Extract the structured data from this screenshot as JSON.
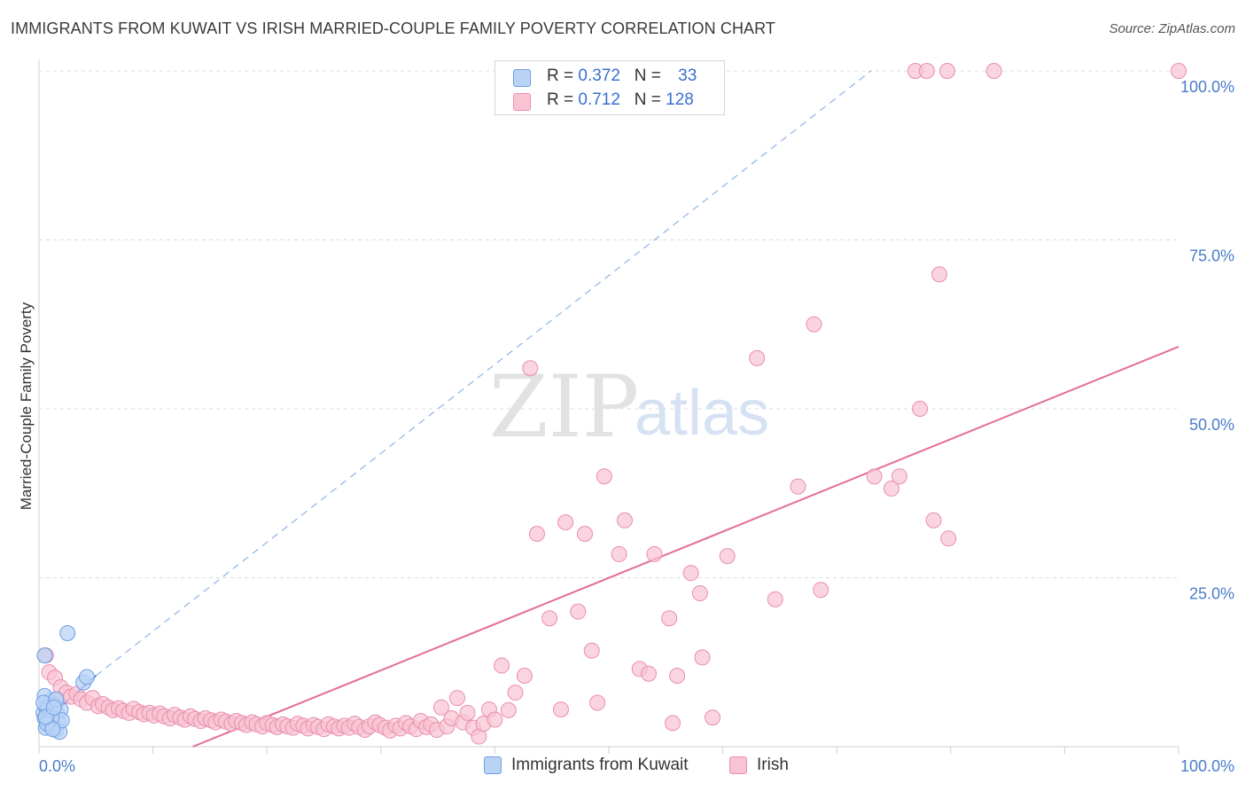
{
  "header": {
    "title": "IMMIGRANTS FROM KUWAIT VS IRISH MARRIED-COUPLE FAMILY POVERTY CORRELATION CHART",
    "source": "Source: ZipAtlas.com"
  },
  "watermark": {
    "zip": "ZIP",
    "atlas": "atlas"
  },
  "legend_top": {
    "rows": [
      {
        "r_label": "R = ",
        "r_value": "0.372",
        "n_label": "N = ",
        "n_value": "33"
      },
      {
        "r_label": "R = ",
        "r_value": "0.712",
        "n_label": "N = ",
        "n_value": "128"
      }
    ]
  },
  "legend_bottom": {
    "items": [
      {
        "label": "Immigrants from Kuwait"
      },
      {
        "label": "Irish"
      }
    ]
  },
  "colors": {
    "kuwait_fill": "#b9d3f5",
    "kuwait_stroke": "#6f9fe0",
    "kuwait_line": "#3d7fd6",
    "irish_fill": "#f8c3d3",
    "irish_stroke": "#ea8eab",
    "irish_line": "#e46d96",
    "grid": "#dcdcdc",
    "tick_text": "#4a7cc9"
  },
  "chart_data": {
    "type": "scatter",
    "title": "IMMIGRANTS FROM KUWAIT VS IRISH MARRIED-COUPLE FAMILY POVERTY CORRELATION CHART",
    "xlabel": "",
    "ylabel": "Married-Couple Family Poverty",
    "xlim": [
      0,
      100
    ],
    "ylim": [
      0,
      100
    ],
    "x_tick_labels": [
      {
        "value": 0,
        "label": "0.0%"
      },
      {
        "value": 100,
        "label": "100.0%"
      }
    ],
    "y_tick_labels": [
      {
        "value": 25,
        "label": "25.0%"
      },
      {
        "value": 50,
        "label": "50.0%"
      },
      {
        "value": 75,
        "label": "75.0%"
      },
      {
        "value": 100,
        "label": "100.0%"
      }
    ],
    "series": [
      {
        "name": "Immigrants from Kuwait",
        "R": 0.372,
        "N": 33,
        "trend": {
          "x": [
            0.3,
            5.0
          ],
          "y": [
            3.5,
            10.5
          ],
          "style": "solid"
        },
        "trend_extension": {
          "x": [
            5.0,
            73.0
          ],
          "y": [
            10.5,
            100.0
          ],
          "style": "dashed"
        },
        "points": [
          [
            0.4,
            5.0
          ],
          [
            0.5,
            4.2
          ],
          [
            0.6,
            6.0
          ],
          [
            0.7,
            5.5
          ],
          [
            0.8,
            3.8
          ],
          [
            0.9,
            4.6
          ],
          [
            1.0,
            6.8
          ],
          [
            1.1,
            3.2
          ],
          [
            0.5,
            7.5
          ],
          [
            0.6,
            2.8
          ],
          [
            0.8,
            5.8
          ],
          [
            0.9,
            3.5
          ],
          [
            1.0,
            4.0
          ],
          [
            1.2,
            5.2
          ],
          [
            1.3,
            3.0
          ],
          [
            1.4,
            6.2
          ],
          [
            1.5,
            2.5
          ],
          [
            1.6,
            4.8
          ],
          [
            1.7,
            3.6
          ],
          [
            1.8,
            2.2
          ],
          [
            1.9,
            5.5
          ],
          [
            2.0,
            3.9
          ],
          [
            1.1,
            4.3
          ],
          [
            0.7,
            3.4
          ],
          [
            0.4,
            6.5
          ],
          [
            1.5,
            7.0
          ],
          [
            2.5,
            16.8
          ],
          [
            0.5,
            13.5
          ],
          [
            3.9,
            9.5
          ],
          [
            4.2,
            10.3
          ],
          [
            1.2,
            2.6
          ],
          [
            0.6,
            4.4
          ],
          [
            1.3,
            5.8
          ]
        ]
      },
      {
        "name": "Irish",
        "R": 0.712,
        "N": 128,
        "trend": {
          "x": [
            13.5,
            100.0
          ],
          "y": [
            0.0,
            59.2
          ],
          "style": "solid"
        },
        "points": [
          [
            0.6,
            13.5
          ],
          [
            0.9,
            11.0
          ],
          [
            1.4,
            10.2
          ],
          [
            1.9,
            8.8
          ],
          [
            2.4,
            8.0
          ],
          [
            2.8,
            7.4
          ],
          [
            3.3,
            7.8
          ],
          [
            3.7,
            7.0
          ],
          [
            4.2,
            6.5
          ],
          [
            4.7,
            7.2
          ],
          [
            5.2,
            6.0
          ],
          [
            5.6,
            6.3
          ],
          [
            6.1,
            5.8
          ],
          [
            6.5,
            5.4
          ],
          [
            7.0,
            5.7
          ],
          [
            7.4,
            5.3
          ],
          [
            7.9,
            5.0
          ],
          [
            8.3,
            5.6
          ],
          [
            8.8,
            5.1
          ],
          [
            9.2,
            4.8
          ],
          [
            9.7,
            5.0
          ],
          [
            10.1,
            4.6
          ],
          [
            10.6,
            4.9
          ],
          [
            11.0,
            4.5
          ],
          [
            11.5,
            4.2
          ],
          [
            11.9,
            4.7
          ],
          [
            12.4,
            4.3
          ],
          [
            12.8,
            4.0
          ],
          [
            13.3,
            4.5
          ],
          [
            13.7,
            4.1
          ],
          [
            14.2,
            3.8
          ],
          [
            14.6,
            4.2
          ],
          [
            15.1,
            3.9
          ],
          [
            15.5,
            3.6
          ],
          [
            16.0,
            4.0
          ],
          [
            16.4,
            3.7
          ],
          [
            16.9,
            3.4
          ],
          [
            17.3,
            3.8
          ],
          [
            17.8,
            3.5
          ],
          [
            18.2,
            3.2
          ],
          [
            18.7,
            3.6
          ],
          [
            19.1,
            3.3
          ],
          [
            19.6,
            3.0
          ],
          [
            20.0,
            3.5
          ],
          [
            20.5,
            3.2
          ],
          [
            20.9,
            2.9
          ],
          [
            21.4,
            3.3
          ],
          [
            21.8,
            3.0
          ],
          [
            22.3,
            2.8
          ],
          [
            22.7,
            3.4
          ],
          [
            23.2,
            3.1
          ],
          [
            23.6,
            2.7
          ],
          [
            24.1,
            3.2
          ],
          [
            24.5,
            2.9
          ],
          [
            25.0,
            2.6
          ],
          [
            25.4,
            3.3
          ],
          [
            25.9,
            3.0
          ],
          [
            26.3,
            2.7
          ],
          [
            26.8,
            3.1
          ],
          [
            27.2,
            2.8
          ],
          [
            27.7,
            3.4
          ],
          [
            28.1,
            2.9
          ],
          [
            28.6,
            2.5
          ],
          [
            29.0,
            3.0
          ],
          [
            29.5,
            3.6
          ],
          [
            29.9,
            3.2
          ],
          [
            30.4,
            2.8
          ],
          [
            30.8,
            2.4
          ],
          [
            31.3,
            3.1
          ],
          [
            31.7,
            2.7
          ],
          [
            32.2,
            3.5
          ],
          [
            32.6,
            3.0
          ],
          [
            33.1,
            2.6
          ],
          [
            33.5,
            3.8
          ],
          [
            34.0,
            2.9
          ],
          [
            34.4,
            3.3
          ],
          [
            34.9,
            2.5
          ],
          [
            35.3,
            5.8
          ],
          [
            35.8,
            3.0
          ],
          [
            36.2,
            4.2
          ],
          [
            36.7,
            7.2
          ],
          [
            37.2,
            3.6
          ],
          [
            37.6,
            5.0
          ],
          [
            38.1,
            2.8
          ],
          [
            38.6,
            1.5
          ],
          [
            39.0,
            3.4
          ],
          [
            39.5,
            5.5
          ],
          [
            40.0,
            4.0
          ],
          [
            40.6,
            12.0
          ],
          [
            41.2,
            5.4
          ],
          [
            41.8,
            8.0
          ],
          [
            42.6,
            10.5
          ],
          [
            43.7,
            31.5
          ],
          [
            43.1,
            56.0
          ],
          [
            44.8,
            19.0
          ],
          [
            45.8,
            5.5
          ],
          [
            46.2,
            33.2
          ],
          [
            47.3,
            20.0
          ],
          [
            47.9,
            31.5
          ],
          [
            48.5,
            14.2
          ],
          [
            49.0,
            6.5
          ],
          [
            49.6,
            40.0
          ],
          [
            50.9,
            28.5
          ],
          [
            51.4,
            33.5
          ],
          [
            52.7,
            11.5
          ],
          [
            53.5,
            10.8
          ],
          [
            54.0,
            28.5
          ],
          [
            55.3,
            19.0
          ],
          [
            55.6,
            3.5
          ],
          [
            56.0,
            10.5
          ],
          [
            57.2,
            25.7
          ],
          [
            58.0,
            22.7
          ],
          [
            58.2,
            13.2
          ],
          [
            59.1,
            4.3
          ],
          [
            60.4,
            28.2
          ],
          [
            63.0,
            57.5
          ],
          [
            64.6,
            21.8
          ],
          [
            66.6,
            38.5
          ],
          [
            68.0,
            62.5
          ],
          [
            68.6,
            23.2
          ],
          [
            73.3,
            40.0
          ],
          [
            74.8,
            38.2
          ],
          [
            75.5,
            40.0
          ],
          [
            77.3,
            50.0
          ],
          [
            78.5,
            33.5
          ],
          [
            79.8,
            30.8
          ],
          [
            76.9,
            100.0
          ],
          [
            77.9,
            100.0
          ],
          [
            83.8,
            100.0
          ],
          [
            100.0,
            100.0
          ],
          [
            79.7,
            100.0
          ],
          [
            79.0,
            69.9
          ]
        ]
      }
    ]
  }
}
